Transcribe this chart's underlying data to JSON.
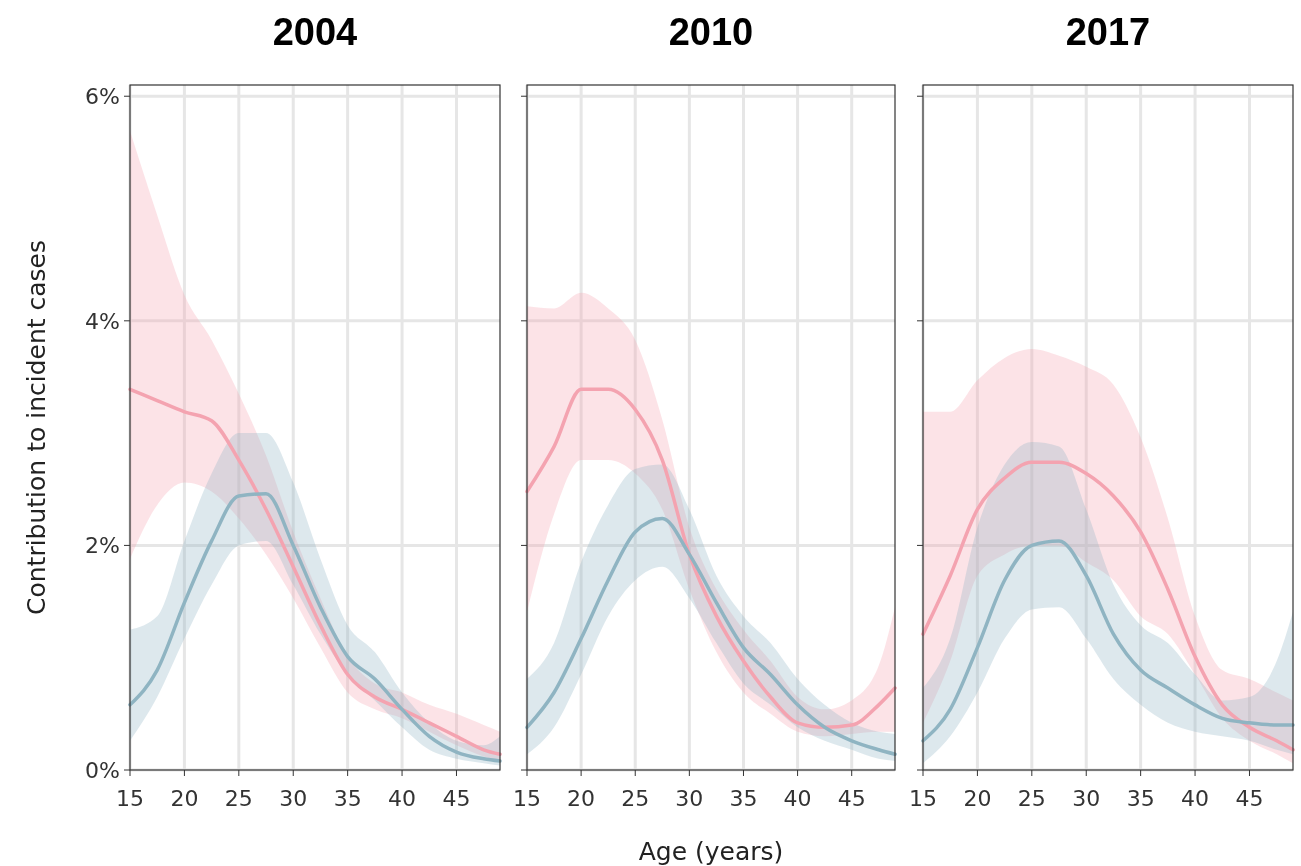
{
  "chart_data": [
    {
      "type": "line",
      "title": "2004",
      "ylabel": "Contribution to incident cases",
      "x": [
        15,
        17.5,
        20,
        22.5,
        25,
        27.5,
        30,
        32.5,
        35,
        37.5,
        40,
        42.5,
        45,
        47.5,
        49
      ],
      "xlim": [
        15,
        49
      ],
      "xticks": [
        15,
        20,
        25,
        30,
        35,
        40,
        45
      ],
      "ylim": [
        0,
        6.1
      ],
      "yticks": [
        {
          "value": 0,
          "label": "0%"
        },
        {
          "value": 2,
          "label": "2%"
        },
        {
          "value": 4,
          "label": "4%"
        },
        {
          "value": 6,
          "label": "6%"
        }
      ],
      "grid": true,
      "series": [
        {
          "color": "#f4a3b0",
          "values": [
            3.39,
            3.29,
            3.19,
            3.11,
            2.76,
            2.32,
            1.81,
            1.29,
            0.85,
            0.65,
            0.54,
            0.42,
            0.3,
            0.18,
            0.14
          ],
          "lower": [
            1.88,
            2.36,
            2.56,
            2.48,
            2.24,
            1.92,
            1.53,
            1.09,
            0.69,
            0.54,
            0.46,
            0.34,
            0.22,
            0.12,
            0.08
          ],
          "upper": [
            5.69,
            4.94,
            4.23,
            3.83,
            3.35,
            2.8,
            2.12,
            1.53,
            1.01,
            0.77,
            0.69,
            0.58,
            0.5,
            0.4,
            0.34
          ]
        },
        {
          "color": "#8fb4c2",
          "values": [
            0.58,
            0.89,
            1.49,
            2.04,
            2.44,
            2.46,
            2.0,
            1.45,
            1.01,
            0.81,
            0.54,
            0.3,
            0.16,
            0.1,
            0.08
          ],
          "lower": [
            0.26,
            0.65,
            1.17,
            1.65,
            2.0,
            2.04,
            1.65,
            1.21,
            0.85,
            0.62,
            0.38,
            0.18,
            0.1,
            0.06,
            0.04
          ],
          "upper": [
            1.25,
            1.37,
            2.04,
            2.64,
            3.0,
            3.0,
            2.56,
            1.88,
            1.29,
            1.05,
            0.69,
            0.42,
            0.26,
            0.22,
            0.3
          ]
        }
      ]
    },
    {
      "type": "line",
      "title": "2010",
      "xlabel": "Age (years)",
      "x": [
        15,
        17.5,
        20,
        22.5,
        25,
        27.5,
        30,
        32.5,
        35,
        37.5,
        40,
        42.5,
        45,
        47.5,
        49
      ],
      "xlim": [
        15,
        49
      ],
      "xticks": [
        15,
        20,
        25,
        30,
        35,
        40,
        45
      ],
      "ylim": [
        0,
        6.1
      ],
      "yticks": [
        {
          "value": 0,
          "label": null
        },
        {
          "value": 2,
          "label": null
        },
        {
          "value": 4,
          "label": null
        },
        {
          "value": 6,
          "label": null
        }
      ],
      "grid": true,
      "tick_labels": "x",
      "series": [
        {
          "color": "#f4a3b0",
          "values": [
            2.48,
            2.88,
            3.39,
            3.39,
            3.21,
            2.76,
            1.92,
            1.37,
            0.97,
            0.65,
            0.42,
            0.38,
            0.4,
            0.58,
            0.73
          ],
          "lower": [
            1.41,
            2.28,
            2.76,
            2.76,
            2.64,
            2.32,
            1.61,
            1.05,
            0.69,
            0.5,
            0.34,
            0.3,
            0.32,
            0.34,
            0.34
          ],
          "upper": [
            4.13,
            4.11,
            4.25,
            4.11,
            3.83,
            3.12,
            2.16,
            1.61,
            1.25,
            0.97,
            0.65,
            0.54,
            0.62,
            0.93,
            1.45
          ]
        },
        {
          "color": "#8fb4c2",
          "values": [
            0.38,
            0.69,
            1.17,
            1.69,
            2.12,
            2.24,
            1.92,
            1.49,
            1.09,
            0.85,
            0.58,
            0.38,
            0.26,
            0.18,
            0.14
          ],
          "lower": [
            0.14,
            0.38,
            0.85,
            1.37,
            1.69,
            1.81,
            1.53,
            1.13,
            0.77,
            0.58,
            0.38,
            0.26,
            0.18,
            0.1,
            0.08
          ],
          "upper": [
            0.81,
            1.13,
            1.85,
            2.36,
            2.68,
            2.72,
            2.32,
            1.73,
            1.37,
            1.13,
            0.81,
            0.58,
            0.42,
            0.34,
            0.32
          ]
        }
      ]
    },
    {
      "type": "line",
      "title": "2017",
      "x": [
        15,
        17.5,
        20,
        22.5,
        25,
        27.5,
        30,
        32.5,
        35,
        37.5,
        40,
        42.5,
        45,
        47.5,
        49
      ],
      "xlim": [
        15,
        49
      ],
      "xticks": [
        15,
        20,
        25,
        30,
        35,
        40,
        45
      ],
      "ylim": [
        0,
        6.1
      ],
      "yticks": [
        {
          "value": 0,
          "label": null
        },
        {
          "value": 2,
          "label": null
        },
        {
          "value": 4,
          "label": null
        },
        {
          "value": 6,
          "label": null
        }
      ],
      "grid": true,
      "tick_labels": "x",
      "series": [
        {
          "color": "#f4a3b0",
          "values": [
            1.21,
            1.73,
            2.32,
            2.6,
            2.74,
            2.74,
            2.64,
            2.44,
            2.12,
            1.61,
            1.01,
            0.58,
            0.38,
            0.26,
            0.18
          ],
          "lower": [
            0.42,
            0.97,
            1.73,
            1.92,
            2.0,
            2.0,
            1.85,
            1.69,
            1.37,
            1.21,
            0.85,
            0.46,
            0.26,
            0.14,
            0.06
          ],
          "upper": [
            3.19,
            3.19,
            3.47,
            3.67,
            3.75,
            3.69,
            3.59,
            3.43,
            2.96,
            2.24,
            1.37,
            0.89,
            0.81,
            0.69,
            0.62
          ]
        },
        {
          "color": "#8fb4c2",
          "values": [
            0.26,
            0.54,
            1.09,
            1.69,
            2.0,
            2.04,
            1.73,
            1.21,
            0.89,
            0.73,
            0.58,
            0.46,
            0.42,
            0.4,
            0.4
          ],
          "lower": [
            0.06,
            0.3,
            0.69,
            1.17,
            1.43,
            1.45,
            1.17,
            0.81,
            0.58,
            0.42,
            0.34,
            0.3,
            0.26,
            0.18,
            0.14
          ],
          "upper": [
            0.73,
            1.17,
            2.16,
            2.72,
            2.92,
            2.88,
            2.32,
            1.65,
            1.29,
            1.13,
            0.85,
            0.62,
            0.65,
            0.97,
            1.41
          ]
        }
      ]
    }
  ]
}
